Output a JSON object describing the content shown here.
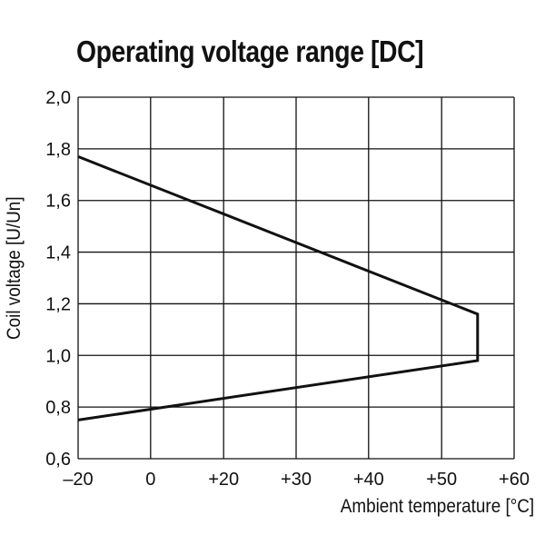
{
  "chart_data": {
    "type": "line",
    "title": "Operating voltage range [DC]",
    "xlabel": "Ambient temperature [°C]",
    "ylabel": "Coil voltage [U/Un]",
    "xlim": [
      -20,
      60
    ],
    "ylim": [
      0.6,
      2.0
    ],
    "grid": true,
    "x_ticks": [
      -20,
      0,
      20,
      30,
      40,
      50,
      60
    ],
    "x_tick_labels": [
      "–20",
      "0",
      "+20",
      "+30",
      "+40",
      "+50",
      "+60"
    ],
    "x_tick_positions": [
      -20,
      -6.7,
      6.7,
      20,
      33.3,
      46.7,
      60
    ],
    "y_ticks": [
      0.6,
      0.8,
      1.0,
      1.2,
      1.4,
      1.6,
      1.8,
      2.0
    ],
    "y_tick_labels": [
      "0,6",
      "0,8",
      "1,0",
      "1,2",
      "1,4",
      "1,6",
      "1,8",
      "2,0"
    ],
    "series": [
      {
        "x": [
          -20,
          53.3,
          53.3,
          -20
        ],
        "y": [
          1.77,
          1.16,
          0.98,
          0.75
        ]
      }
    ]
  }
}
